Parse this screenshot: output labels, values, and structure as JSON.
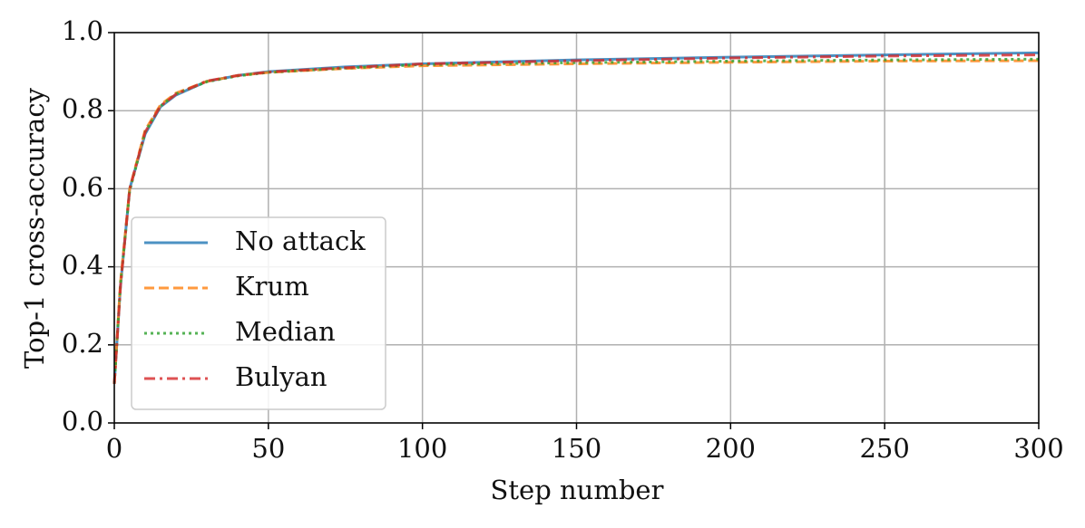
{
  "chart_data": {
    "type": "line",
    "xlabel": "Step number",
    "ylabel": "Top-1 cross-accuracy",
    "x": [
      0,
      2,
      5,
      10,
      15,
      20,
      30,
      40,
      50,
      75,
      100,
      150,
      200,
      250,
      300
    ],
    "series": [
      {
        "name": "No attack",
        "color": "#1f77b4",
        "linestyle": "solid",
        "values": [
          0.1,
          0.35,
          0.6,
          0.74,
          0.81,
          0.84,
          0.875,
          0.89,
          0.9,
          0.912,
          0.92,
          0.93,
          0.937,
          0.943,
          0.948
        ]
      },
      {
        "name": "Krum",
        "color": "#ff7f0e",
        "linestyle": "dashed",
        "values": [
          0.1,
          0.36,
          0.6,
          0.75,
          0.815,
          0.845,
          0.875,
          0.89,
          0.898,
          0.908,
          0.915,
          0.92,
          0.924,
          0.927,
          0.928
        ]
      },
      {
        "name": "Median",
        "color": "#2ca02c",
        "linestyle": "dotted",
        "values": [
          0.1,
          0.355,
          0.595,
          0.745,
          0.812,
          0.843,
          0.874,
          0.889,
          0.898,
          0.909,
          0.918,
          0.923,
          0.927,
          0.93,
          0.932
        ]
      },
      {
        "name": "Bulyan",
        "color": "#d62728",
        "linestyle": "dashdot",
        "values": [
          0.1,
          0.35,
          0.6,
          0.745,
          0.812,
          0.842,
          0.876,
          0.89,
          0.899,
          0.91,
          0.92,
          0.928,
          0.935,
          0.94,
          0.943
        ]
      }
    ],
    "xlim": [
      0,
      300
    ],
    "xticks": [
      0,
      50,
      100,
      150,
      200,
      250,
      300
    ],
    "ylim": [
      0,
      1
    ],
    "yticks": [
      {
        "value": 0,
        "label": "0.0"
      },
      0.2,
      0.4,
      0.6,
      0.8,
      {
        "value": 1,
        "label": "1.0"
      }
    ],
    "grid": true,
    "legend": "lower left"
  }
}
